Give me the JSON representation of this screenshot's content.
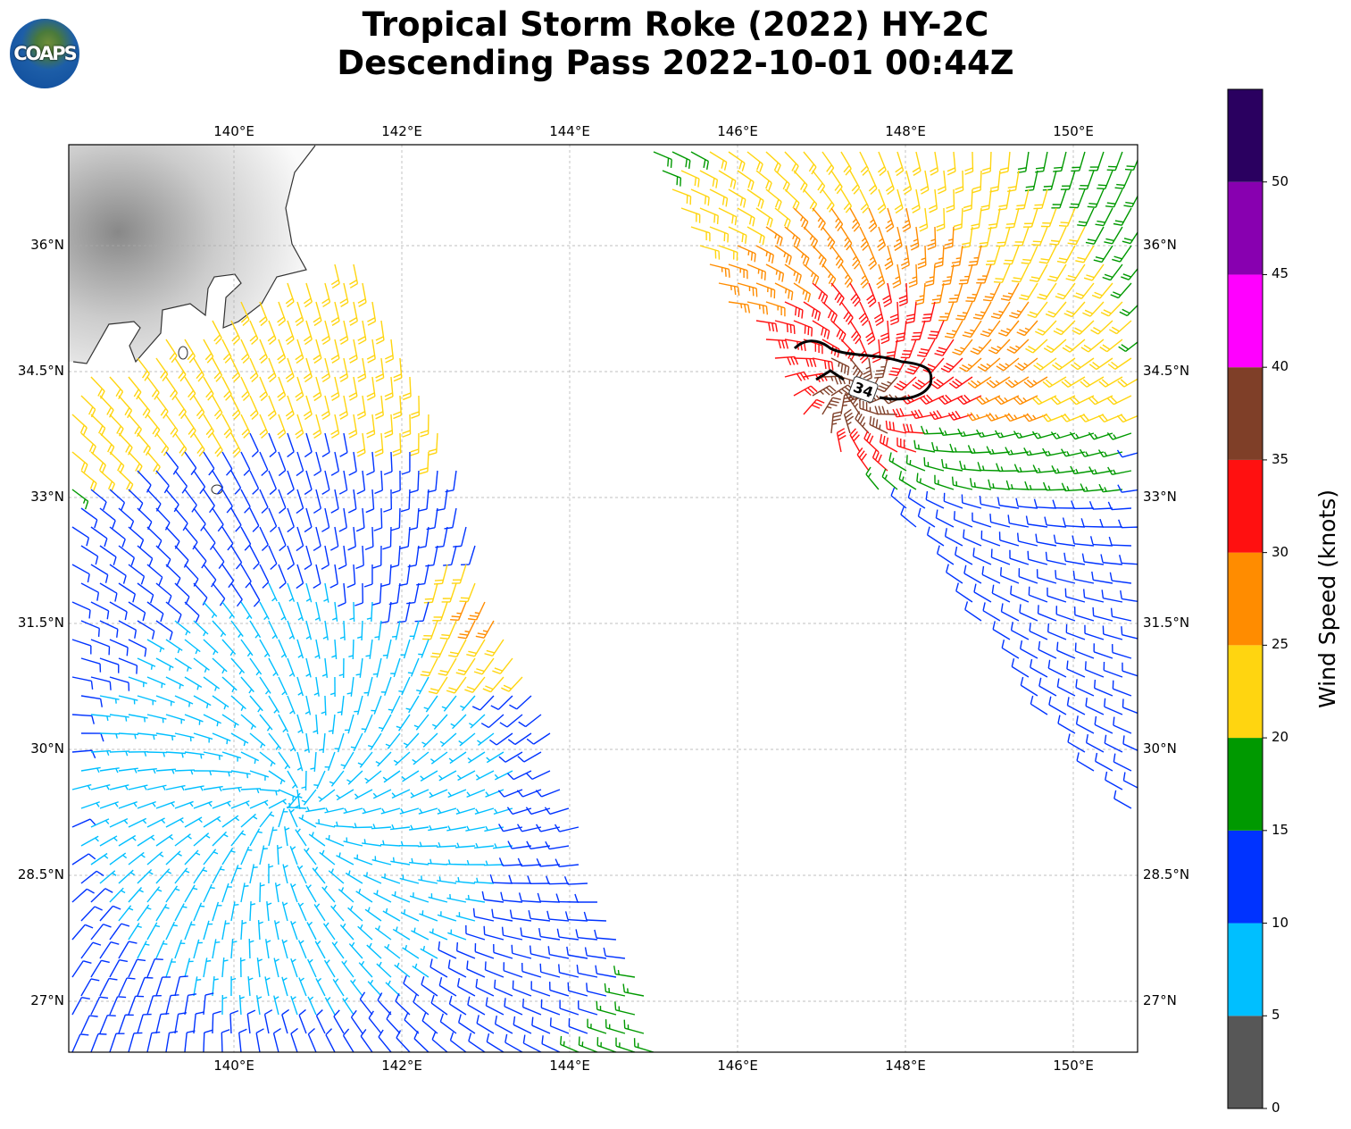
{
  "title": {
    "line1": "Tropical Storm Roke (2022) HY-2C",
    "line2": "Descending Pass 2022-10-01 00:44Z"
  },
  "logo": {
    "text": "COAPS"
  },
  "chart_data": {
    "type": "map-wind-barbs",
    "lon_ticks": [
      "140°E",
      "142°E",
      "144°E",
      "146°E",
      "148°E",
      "150°E"
    ],
    "lon_values": [
      140,
      142,
      144,
      146,
      148,
      150
    ],
    "lat_ticks": [
      "27°N",
      "28.5°N",
      "30°N",
      "31.5°N",
      "33°N",
      "34.5°N",
      "36°N"
    ],
    "lat_values": [
      27,
      28.5,
      30,
      31.5,
      33,
      34.5,
      36
    ],
    "extent": {
      "lon": [
        138.05,
        150.77
      ],
      "lat": [
        26.4,
        37.2
      ]
    },
    "contour": {
      "label": "34",
      "value_knots": 34
    },
    "colorbar": {
      "label": "Wind Speed (knots)",
      "ticks": [
        "0",
        "5",
        "10",
        "15",
        "20",
        "25",
        "30",
        "35",
        "40",
        "45",
        "50"
      ],
      "range": [
        0,
        55
      ],
      "bins": [
        {
          "min": 0,
          "max": 5,
          "color": "#575757"
        },
        {
          "min": 5,
          "max": 10,
          "color": "#00bfff"
        },
        {
          "min": 10,
          "max": 15,
          "color": "#0033ff"
        },
        {
          "min": 15,
          "max": 20,
          "color": "#009900"
        },
        {
          "min": 20,
          "max": 25,
          "color": "#ffd510"
        },
        {
          "min": 25,
          "max": 30,
          "color": "#ff8c00"
        },
        {
          "min": 30,
          "max": 35,
          "color": "#ff1010"
        },
        {
          "min": 35,
          "max": 40,
          "color": "#7f3f28"
        },
        {
          "min": 40,
          "max": 45,
          "color": "#ff00ff"
        },
        {
          "min": 45,
          "max": 50,
          "color": "#8800b0"
        },
        {
          "min": 50,
          "max": 55,
          "color": "#2a0060"
        }
      ]
    }
  }
}
